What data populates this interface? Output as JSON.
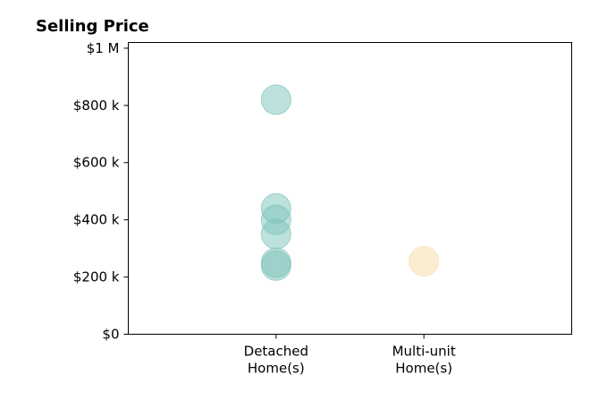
{
  "chart_data": {
    "type": "scatter",
    "title": "Selling Price",
    "categories": [
      "Detached\nHome(s)",
      "Multi-unit\nHome(s)"
    ],
    "y_tick_labels": [
      "$0",
      "$200 k",
      "$400 k",
      "$600 k",
      "$800 k",
      "$1 M"
    ],
    "y_ticks": [
      0,
      200000,
      400000,
      600000,
      800000,
      1000000
    ],
    "ylim": [
      0,
      1020000
    ],
    "xlim": [
      -1,
      2
    ],
    "grid": false,
    "series": [
      {
        "category_index": 0,
        "color": "#7cc4ba",
        "values": [
          820000,
          440000,
          400000,
          350000,
          250000,
          240000
        ]
      },
      {
        "category_index": 1,
        "color": "#f6dca6",
        "values": [
          255000
        ]
      }
    ]
  }
}
